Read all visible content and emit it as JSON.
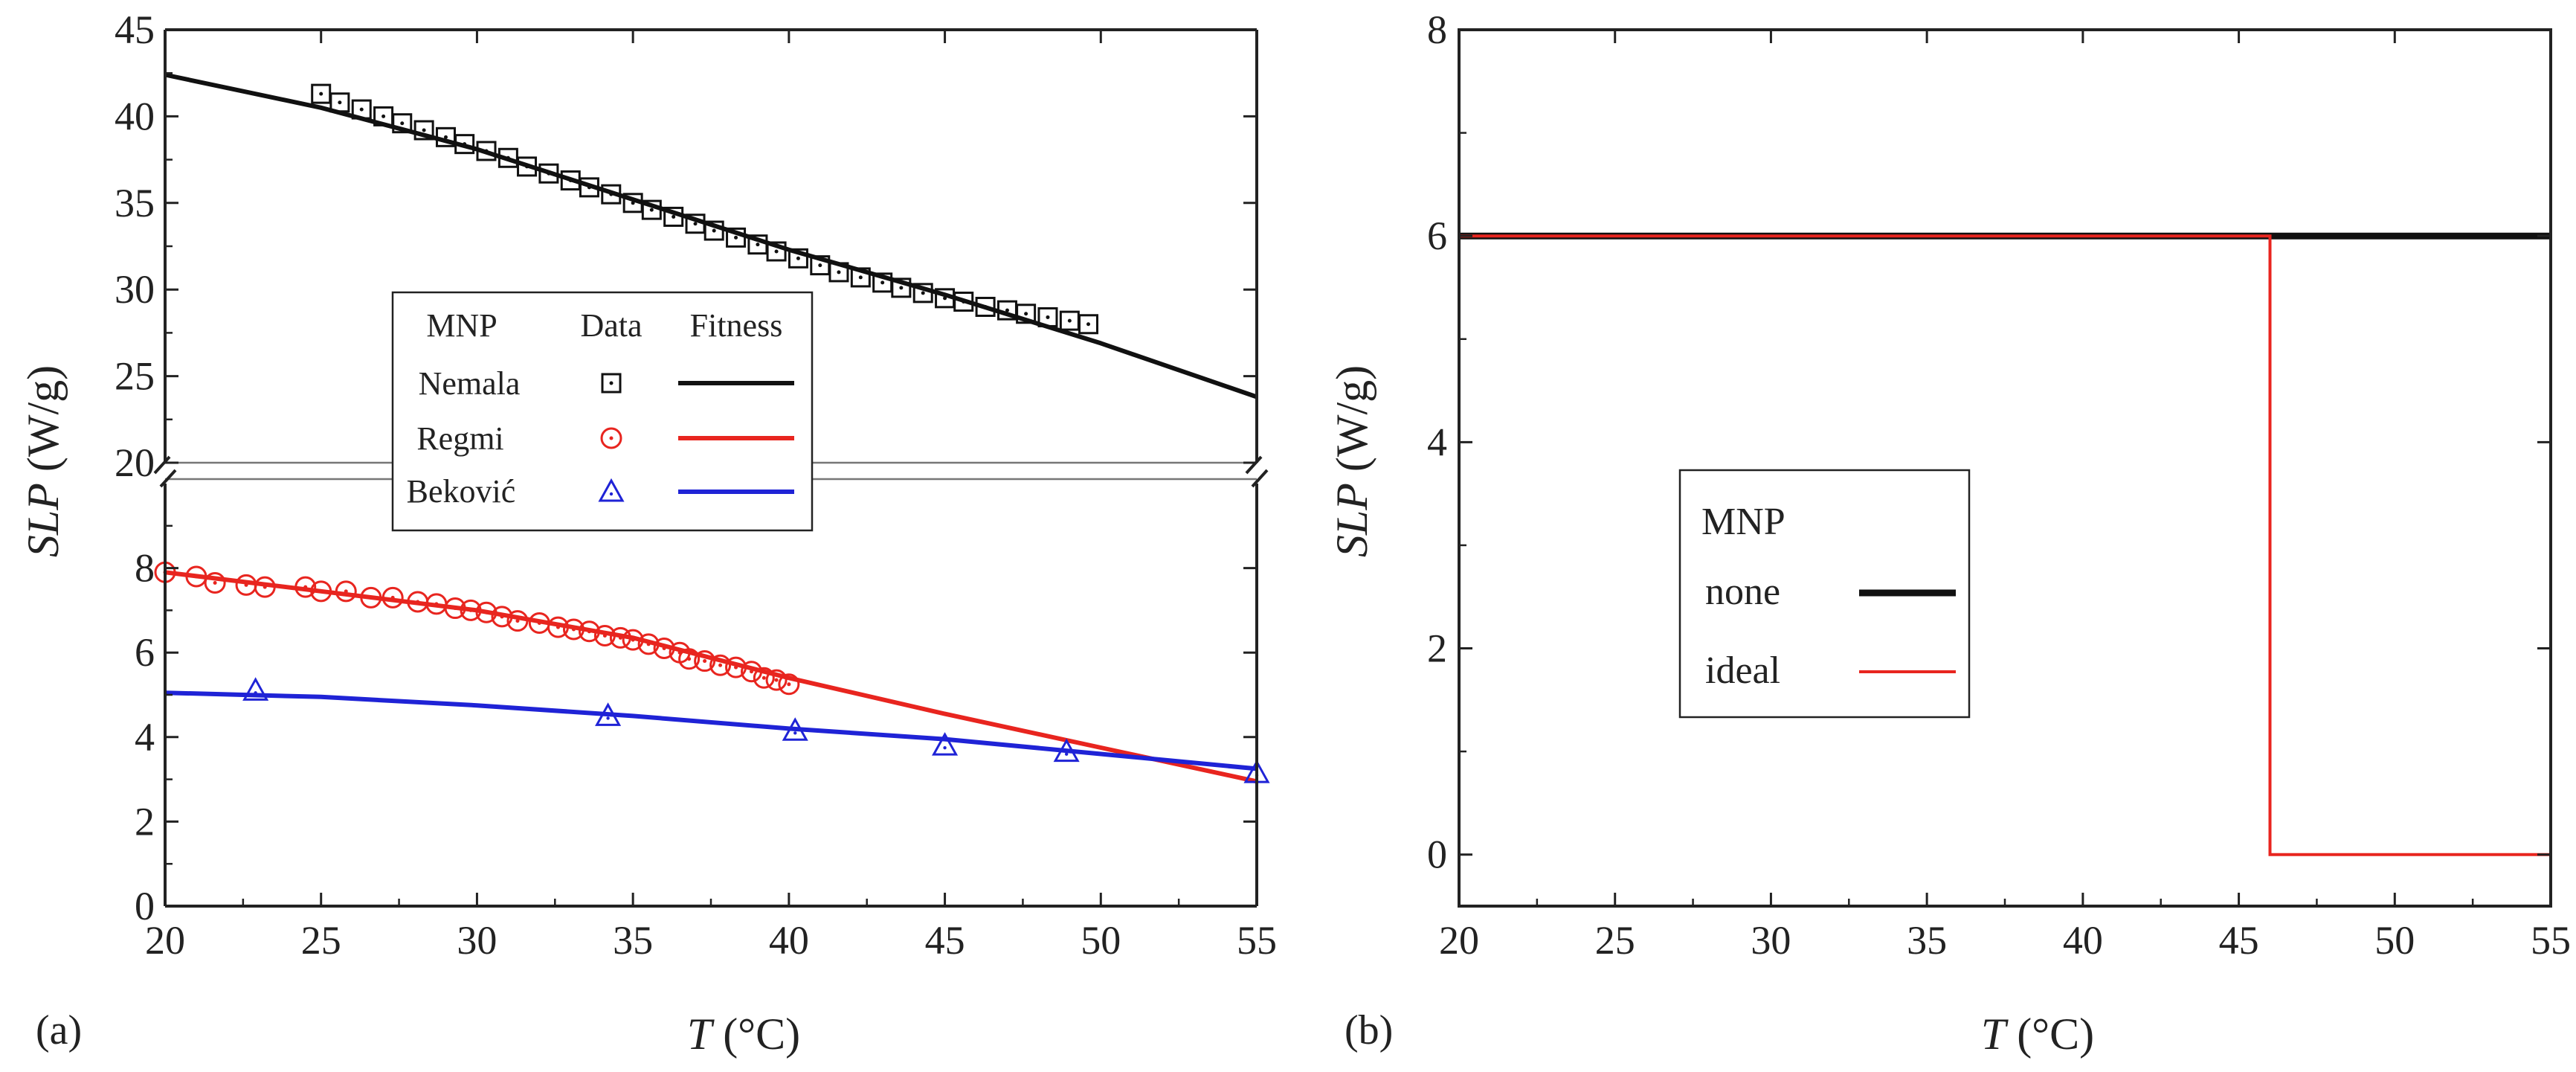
{
  "chart_data": [
    {
      "panel": "(a)",
      "type": "scatter",
      "broken_y_axis": true,
      "xlabel_italic": "T",
      "xlabel_unit": "(°C)",
      "ylabel_italic": "SLP",
      "ylabel_unit": "(W/g)",
      "xlim": [
        20,
        55
      ],
      "xticks": [
        20,
        25,
        30,
        35,
        40,
        45,
        50,
        55
      ],
      "upper_ylim": [
        20,
        45
      ],
      "upper_yticks": [
        20,
        25,
        30,
        35,
        40,
        45
      ],
      "lower_ylim": [
        0,
        10
      ],
      "lower_yticks": [
        0,
        2,
        4,
        6,
        8
      ],
      "legend": {
        "headers": [
          "MNP",
          "Data",
          "Fitness"
        ],
        "entries": [
          "Nemala",
          "Regmi",
          "Beković"
        ]
      },
      "series": [
        {
          "name": "Nemala",
          "color": "#111111",
          "marker": "square-dot",
          "axis": "upper",
          "x": [
            25.0,
            25.6,
            26.3,
            27.0,
            27.6,
            28.3,
            29.0,
            29.6,
            30.3,
            31.0,
            31.6,
            32.3,
            33.0,
            33.6,
            34.3,
            35.0,
            35.6,
            36.3,
            37.0,
            37.6,
            38.3,
            39.0,
            39.6,
            40.3,
            41.0,
            41.6,
            42.3,
            43.0,
            43.6,
            44.3,
            45.0,
            45.6,
            46.3,
            47.0,
            47.6,
            48.3,
            49.0,
            49.6
          ],
          "y": [
            41.3,
            40.8,
            40.4,
            40.0,
            39.6,
            39.2,
            38.8,
            38.4,
            38.0,
            37.6,
            37.1,
            36.7,
            36.3,
            35.9,
            35.5,
            35.0,
            34.6,
            34.2,
            33.8,
            33.4,
            33.0,
            32.6,
            32.2,
            31.8,
            31.4,
            31.0,
            30.7,
            30.4,
            30.1,
            29.8,
            29.5,
            29.3,
            29.0,
            28.8,
            28.6,
            28.4,
            28.2,
            28.0
          ],
          "fit": {
            "x": [
              20,
              25,
              30,
              35,
              40,
              45,
              50,
              55
            ],
            "y": [
              42.4,
              40.5,
              38.1,
              35.2,
              32.3,
              29.7,
              26.9,
              23.8
            ]
          }
        },
        {
          "name": "Regmi",
          "color": "#e8251f",
          "marker": "circle-dot",
          "axis": "lower",
          "x": [
            20.0,
            21.0,
            21.6,
            22.6,
            23.2,
            24.5,
            25.0,
            25.8,
            26.6,
            27.3,
            28.1,
            28.7,
            29.3,
            29.8,
            30.3,
            30.8,
            31.3,
            32.0,
            32.6,
            33.1,
            33.6,
            34.1,
            34.6,
            35.0,
            35.5,
            36.0,
            36.5,
            36.8,
            37.3,
            37.8,
            38.3,
            38.8,
            39.2,
            39.6,
            40.0
          ],
          "y": [
            7.9,
            7.8,
            7.65,
            7.6,
            7.55,
            7.55,
            7.45,
            7.45,
            7.3,
            7.3,
            7.2,
            7.15,
            7.05,
            7.0,
            6.95,
            6.85,
            6.75,
            6.7,
            6.6,
            6.55,
            6.5,
            6.4,
            6.35,
            6.3,
            6.2,
            6.1,
            6.0,
            5.85,
            5.8,
            5.7,
            5.65,
            5.55,
            5.4,
            5.35,
            5.25
          ],
          "fit": {
            "x": [
              20,
              25,
              30,
              35,
              40,
              45,
              50,
              55
            ],
            "y": [
              7.9,
              7.45,
              7.0,
              6.35,
              5.4,
              4.55,
              3.75,
              2.95
            ]
          }
        },
        {
          "name": "Beković",
          "color": "#1f23d6",
          "marker": "triangle",
          "axis": "lower",
          "x": [
            22.9,
            34.2,
            40.2,
            45.0,
            48.9,
            55.0
          ],
          "y": [
            5.1,
            4.5,
            4.15,
            3.8,
            3.65,
            3.15
          ],
          "fit": {
            "x": [
              20,
              25,
              30,
              35,
              40,
              45,
              50,
              55
            ],
            "y": [
              5.05,
              4.95,
              4.75,
              4.5,
              4.2,
              3.95,
              3.6,
              3.25
            ]
          }
        }
      ]
    },
    {
      "panel": "(b)",
      "type": "line",
      "xlabel_italic": "T",
      "xlabel_unit": "(°C)",
      "ylabel_italic": "SLP",
      "ylabel_unit": "(W/g)",
      "xlim": [
        20,
        55
      ],
      "xticks": [
        20,
        25,
        30,
        35,
        40,
        45,
        50,
        55
      ],
      "ylim": [
        -0.5,
        8
      ],
      "yticks": [
        0,
        2,
        4,
        6,
        8
      ],
      "legend": {
        "title": "MNP",
        "entries": [
          "none",
          "ideal"
        ]
      },
      "series": [
        {
          "name": "none",
          "color": "#111111",
          "x": [
            20,
            55
          ],
          "y": [
            6,
            6
          ]
        },
        {
          "name": "ideal",
          "color": "#e8251f",
          "x": [
            20,
            46,
            46,
            55
          ],
          "y": [
            6,
            6,
            0,
            0
          ]
        }
      ]
    }
  ]
}
